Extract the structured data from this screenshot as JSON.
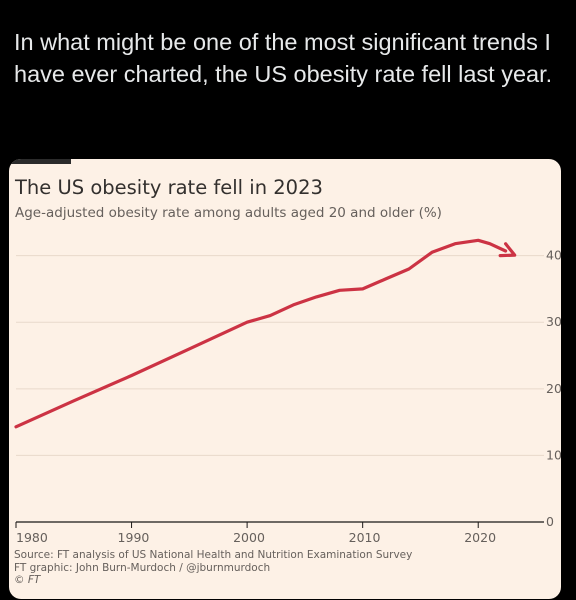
{
  "tweet": {
    "text": "In what might be one of the most significant trends I have ever charted, the US obesity rate fell last year."
  },
  "card": {
    "source_line": "Source: FT analysis of US National Health and Nutrition Examination Survey",
    "graphic_line": "FT graphic: John Burn-Murdoch / @jburnmurdoch",
    "copyright_line": "© FT"
  },
  "colors": {
    "background": "#000000",
    "card_background": "#fdf1e6",
    "line": "#cc3344",
    "gridline": "#e8d9cb",
    "axis_text": "#66605c"
  },
  "chart_data": {
    "type": "line",
    "title": "The US obesity rate fell in 2023",
    "subtitle": "Age-adjusted obesity rate among adults aged 20 and older (%)",
    "xlabel": "",
    "ylabel": "",
    "x_ticks": [
      "1980",
      "1990",
      "2000",
      "2010",
      "2020"
    ],
    "y_ticks": [
      "0",
      "10",
      "20",
      "30",
      "40"
    ],
    "xlim": [
      1980,
      2025
    ],
    "ylim": [
      0,
      44
    ],
    "grid": "horizontal",
    "y_axis_side": "right",
    "end_marker": "arrow",
    "series": [
      {
        "x": [
          1980,
          1985,
          1990,
          1995,
          2000,
          2002,
          2004,
          2006,
          2008,
          2010,
          2012,
          2014,
          2016,
          2018,
          2020,
          2021,
          2023
        ],
        "values": [
          14.3,
          18.2,
          22.0,
          26.0,
          30.0,
          31.0,
          32.6,
          33.8,
          34.8,
          35.0,
          36.5,
          38.0,
          40.5,
          41.8,
          42.3,
          41.8,
          40.2
        ]
      }
    ]
  }
}
